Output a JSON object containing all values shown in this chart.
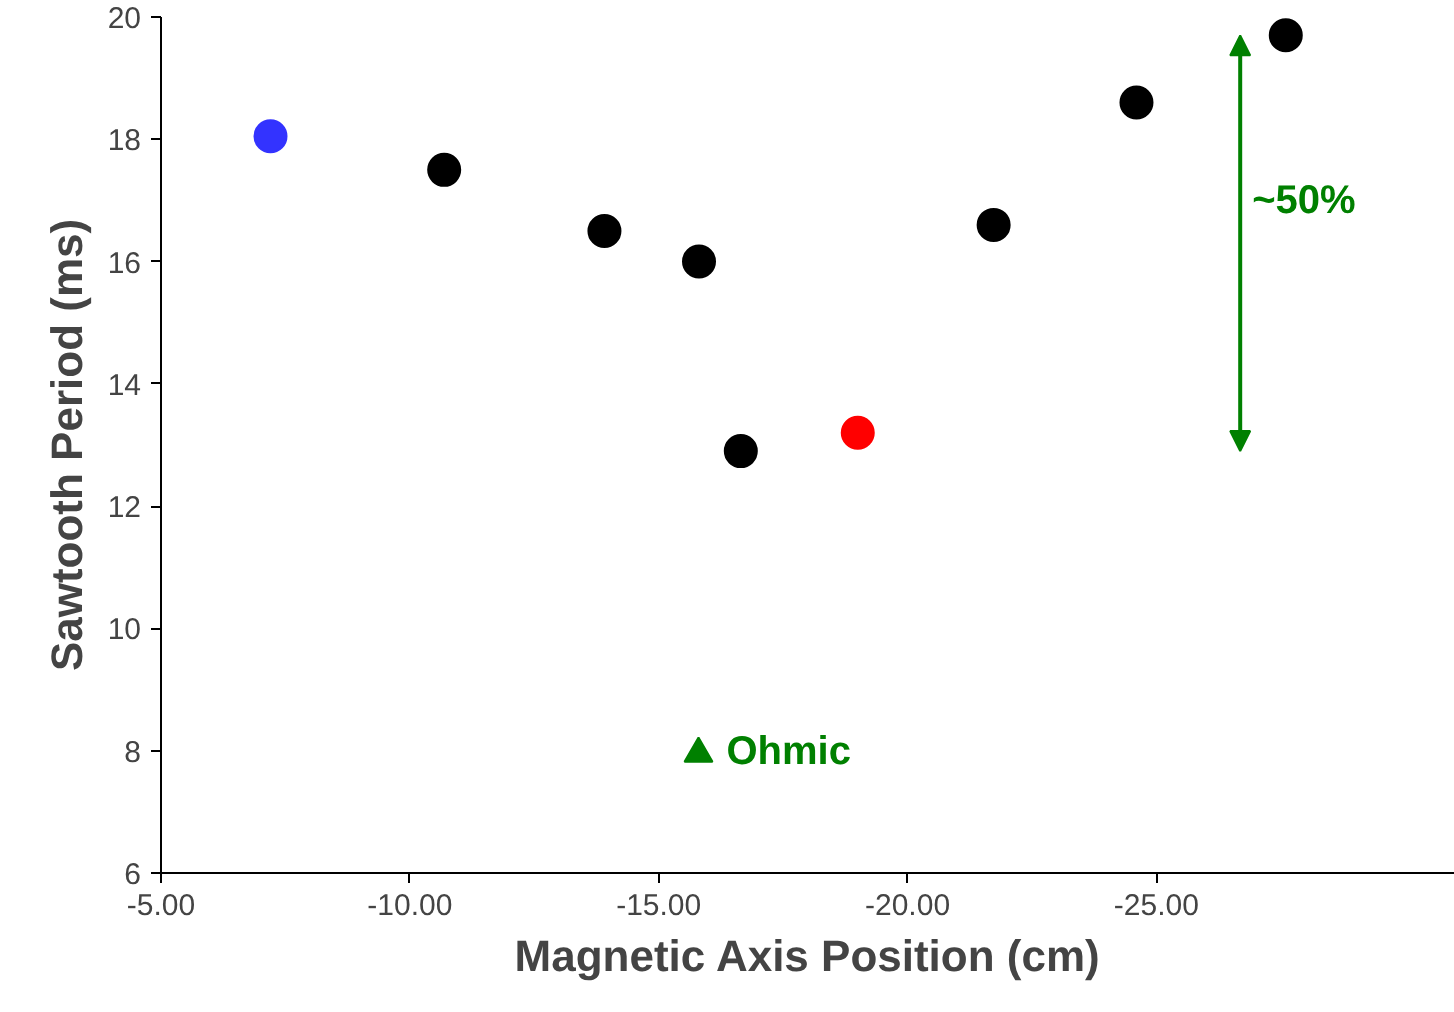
{
  "chart_data": {
    "type": "scatter",
    "xlabel": "Magnetic Axis Position (cm)",
    "ylabel": "Sawtooth Period (ms)",
    "xlim": [
      -5,
      -31
    ],
    "ylim": [
      6,
      20
    ],
    "xticks": [
      {
        "value": -5,
        "label": "-5.00"
      },
      {
        "value": -10,
        "label": "-10.00"
      },
      {
        "value": -15,
        "label": "-15.00"
      },
      {
        "value": -20,
        "label": "-20.00"
      },
      {
        "value": -25,
        "label": "-25.00"
      }
    ],
    "yticks": [
      6,
      8,
      10,
      12,
      14,
      16,
      18,
      20
    ],
    "grid": false,
    "marker": "circle",
    "series": [
      {
        "color": "#000000",
        "x": [
          -10.69,
          -13.91,
          -15.81,
          -16.65,
          -21.73,
          -24.6,
          -27.6
        ],
        "values": [
          17.5,
          16.5,
          16.0,
          12.9,
          16.6,
          18.6,
          19.7
        ]
      },
      {
        "color": "#3333ff",
        "x": [
          -7.2
        ],
        "values": [
          18.05
        ]
      },
      {
        "color": "#ff0000",
        "x": [
          -19.0
        ],
        "values": [
          13.2
        ]
      },
      {
        "name": "Ohmic",
        "color": "#008000",
        "marker": "triangle",
        "x": [
          -15.8
        ],
        "values": [
          7.95
        ]
      }
    ],
    "annotations": [
      "~50%"
    ]
  }
}
